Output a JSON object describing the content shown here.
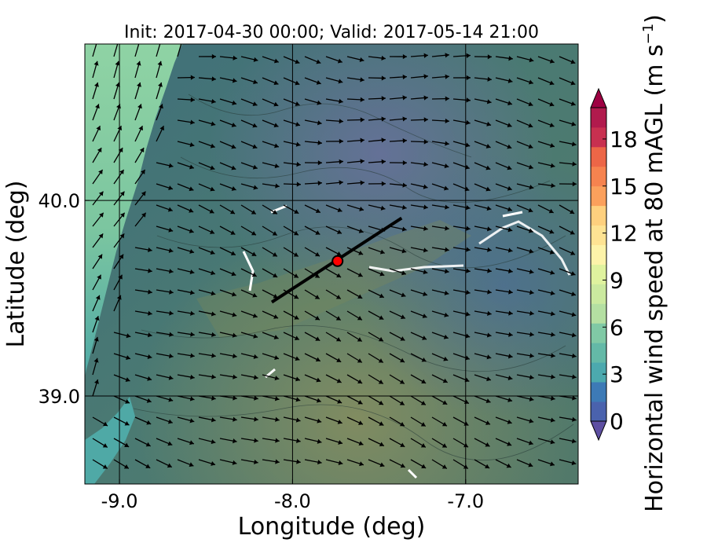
{
  "chart_data": {
    "type": "heatmap",
    "title": "Init: 2017-04-30 00:00; Valid: 2017-05-14 21:00",
    "xlabel": "Longitude (deg)",
    "ylabel": "Latitude (deg)",
    "xlim": [
      -9.2,
      -6.35
    ],
    "ylim": [
      38.55,
      40.8
    ],
    "xticks": [
      -9.0,
      -8.0,
      -7.0
    ],
    "xtick_labels": [
      "-9.0",
      "-8.0",
      "-7.0"
    ],
    "yticks": [
      39.0,
      40.0
    ],
    "ytick_labels": [
      "39.0",
      "40.0"
    ],
    "grid_lons": [
      -9.0,
      -8.0,
      -7.0
    ],
    "grid_lats": [
      39.0,
      40.0
    ],
    "grid": true,
    "colorbar": {
      "label": "Horizontal wind speed at 80 mAGL (m s",
      "label_superscript": "−1",
      "label_close": ")",
      "min": 0,
      "max": 20,
      "step": 1.25,
      "ticks": [
        0,
        3,
        6,
        9,
        12,
        15,
        18
      ],
      "tick_labels": [
        "0",
        "3",
        "6",
        "9",
        "12",
        "15",
        "18"
      ],
      "extend": "both",
      "colors": [
        "#5e4fa2",
        "#4a62ad",
        "#3d7ab6",
        "#3e94b6",
        "#4ca9ae",
        "#64b9a7",
        "#80c9a5",
        "#9bd5a4",
        "#b4dfa2",
        "#cbe99f",
        "#dff29e",
        "#f0f8a7",
        "#fdf3a9",
        "#fee393",
        "#fed07e",
        "#fdb96a",
        "#fba05c",
        "#f6834f",
        "#ec6647",
        "#dd4a4c",
        "#c83050",
        "#b11a4d",
        "#9e0142"
      ]
    },
    "cross_section": {
      "start": [
        -8.12,
        39.48
      ],
      "end": [
        -7.37,
        39.91
      ]
    },
    "site": {
      "lon": -7.74,
      "lat": 39.69,
      "color": "#ff0000"
    }
  }
}
